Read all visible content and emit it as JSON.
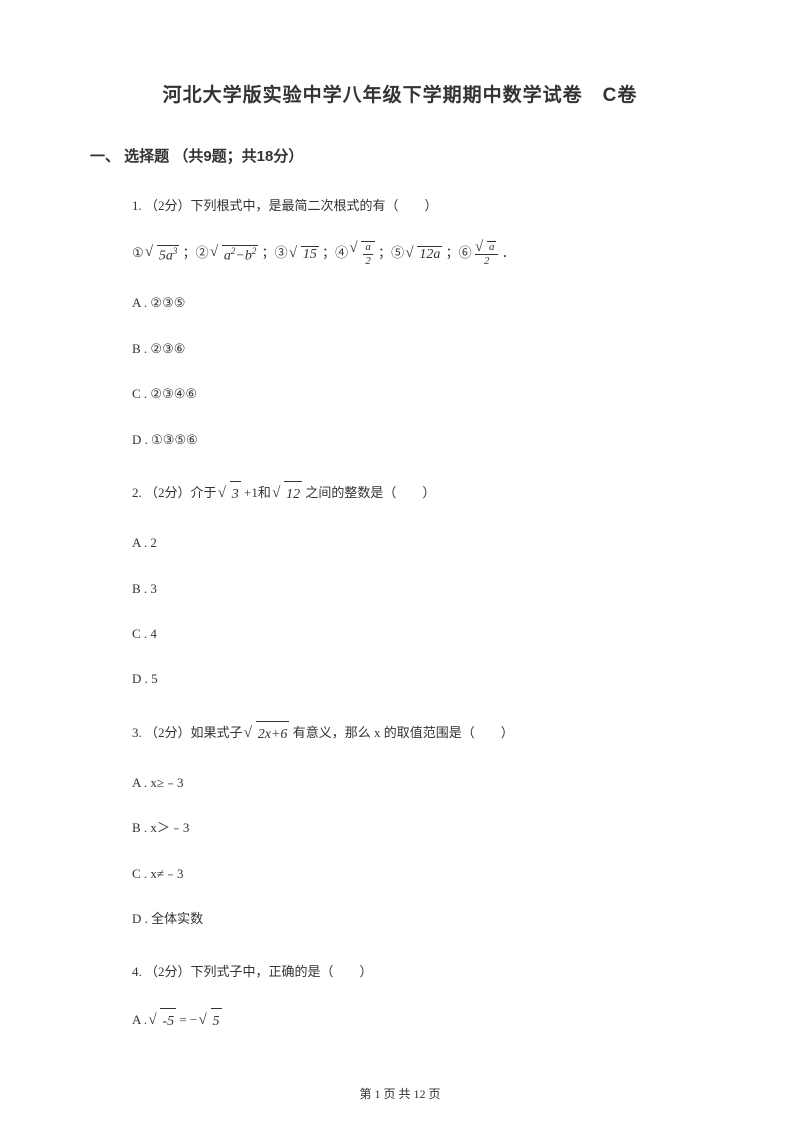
{
  "title_part1": "河北大学版实验中学八年级下学期期中数学试卷",
  "title_part2": "C卷",
  "section_header": "一、 选择题 （共9题；共18分）",
  "q1": {
    "stem": "1. （2分）下列根式中，是最简二次根式的有（　　）",
    "items_prefix": [
      "①",
      "；②",
      "；③",
      "；④",
      "；⑤",
      "；⑥"
    ],
    "items_suffix": " ．",
    "expr1": "5a³",
    "expr2": "a²−b²",
    "expr3": "15",
    "expr4_num": "a",
    "expr4_den": "2",
    "expr5": "12a",
    "expr6_num_inner": "a",
    "expr6_den": "2",
    "opts": {
      "A": "A . ②③⑤",
      "B": "B . ②③⑥",
      "C": "C . ②③④⑥",
      "D": "D . ①③⑤⑥"
    }
  },
  "q2": {
    "stem_a": "2. （2分）介于 ",
    "expr1": "3",
    "stem_b": " +1和 ",
    "expr2": "12",
    "stem_c": " 之间的整数是（　　）",
    "opts": {
      "A": "A . 2",
      "B": "B . 3",
      "C": "C . 4",
      "D": "D . 5"
    }
  },
  "q3": {
    "stem_a": "3. （2分）如果式子 ",
    "expr1": "2x+6",
    "stem_b": " 有意义，那么 x 的取值范围是（　　）",
    "opts": {
      "A": "A . x≥﹣3",
      "B": "B . x＞﹣3",
      "C": "C . x≠﹣3",
      "D": "D . 全体实数"
    }
  },
  "q4": {
    "stem": "4. （2分）下列式子中，正确的是（　　）",
    "optA_prefix": "A . ",
    "optA_lhs": "-5",
    "optA_eq": " = −",
    "optA_rhs": "5"
  },
  "footer": "第 1 页 共 12 页"
}
